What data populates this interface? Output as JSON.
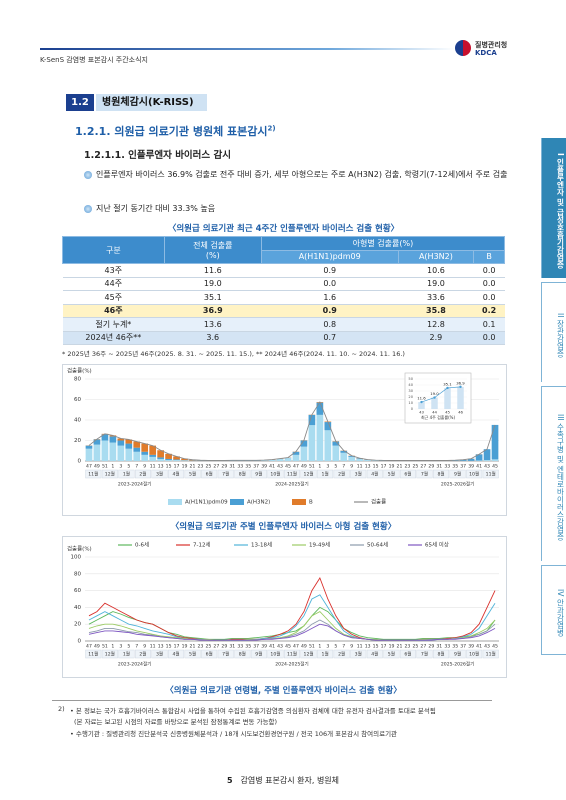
{
  "header": {
    "title": "K-SenS 감염병 표본감시 주간소식지",
    "org": "질병관리청",
    "org_en": "KDCA"
  },
  "section": {
    "number": "1.2",
    "title": "병원체감시(K-RISS)"
  },
  "subsection": {
    "title": "1.2.1. 의원급 의료기관 병원체 표본감시",
    "note": "2)"
  },
  "subsubsection": {
    "title": "1.2.1.1. 인플루엔자 바이러스 감시"
  },
  "bullets": [
    "인플루엔자 바이러스 36.9% 검출로 전주 대비 증가, 세부 아형으로는 주로 A(H3N2) 검출, 학령기(7-12세)에서 주로 검출",
    "지난 절기 동기간 대비 33.3% 높음"
  ],
  "table": {
    "caption": "〈의원급 의료기관 최근 4주간 인플루엔자 바이러스 검출 현황〉",
    "header": [
      "구분",
      "전체 검출률\n(%)",
      "아형별 검출률(%)"
    ],
    "subheader": [
      "A(H1N1)pdm09",
      "A(H3N2)",
      "B"
    ],
    "rows": [
      [
        "43주",
        "11.6",
        "0.9",
        "10.6",
        "0.0"
      ],
      [
        "44주",
        "19.0",
        "0.0",
        "19.0",
        "0.0"
      ],
      [
        "45주",
        "35.1",
        "1.6",
        "33.6",
        "0.0"
      ],
      [
        "46주",
        "36.9",
        "0.9",
        "35.8",
        "0.2"
      ],
      [
        "절기 누계*",
        "13.6",
        "0.8",
        "12.8",
        "0.1"
      ],
      [
        "2024년 46주**",
        "3.6",
        "0.7",
        "2.9",
        "0.0"
      ]
    ],
    "footnote": "* 2025년 36주 ~ 2025년 46주(2025. 8. 31. ~ 2025. 11. 15.), ** 2024년 46주(2024. 11. 10. ~ 2024. 11. 16.)"
  },
  "chart_data": [
    {
      "type": "bar",
      "stacked": true,
      "caption": "〈의원급 의료기관 주별 인플루엔자 바이러스 아형 검출 현황〉",
      "y_label": "검출률(%)",
      "categories": [
        "47",
        "49",
        "51",
        "1",
        "3",
        "5",
        "7",
        "9",
        "11",
        "13",
        "15",
        "17",
        "19",
        "21",
        "23",
        "25",
        "27",
        "29",
        "31",
        "33",
        "35",
        "37",
        "39",
        "41",
        "43",
        "45",
        "47",
        "49",
        "51",
        "1",
        "3",
        "5",
        "7",
        "9",
        "11",
        "13",
        "15",
        "17",
        "19",
        "21",
        "23",
        "25",
        "27",
        "29",
        "31",
        "33",
        "35",
        "37",
        "39",
        "41",
        "43",
        "45"
      ],
      "months": [
        "11월",
        "12월",
        "1월",
        "2월",
        "3월",
        "4월",
        "5월",
        "6월",
        "7월",
        "8월",
        "9월",
        "10월",
        "11월",
        "12월",
        "1월",
        "2월",
        "3월",
        "4월",
        "5월",
        "6월",
        "7월",
        "8월",
        "9월",
        "10월",
        "11월"
      ],
      "seasons": [
        "2023-2024절기",
        "2024-2025절기",
        "2025-2026절기"
      ],
      "ylim": [
        0,
        80
      ],
      "yticks": [
        0,
        20,
        40,
        60,
        80
      ],
      "grid": true,
      "series": [
        {
          "name": "A(H1N1)pdm09",
          "color": "#a9dcf0",
          "values": [
            12,
            16,
            20,
            18,
            15,
            12,
            9,
            6,
            4,
            2,
            1,
            1,
            0.5,
            0.3,
            0.2,
            0.2,
            0.2,
            0.2,
            0.3,
            0.3,
            0.3,
            0.3,
            0.5,
            1,
            2,
            3,
            6,
            14,
            35,
            45,
            30,
            15,
            8,
            4,
            2,
            1,
            0.5,
            0.3,
            0.2,
            0.2,
            0.2,
            0.2,
            0.2,
            0.2,
            0.2,
            0.2,
            0.2,
            0.2,
            0.2,
            0.5,
            0.9,
            1.6
          ]
        },
        {
          "name": "A(H3N2)",
          "color": "#4a9fd4",
          "values": [
            3,
            5,
            6,
            6,
            5,
            5,
            4,
            3,
            2,
            1.5,
            1,
            0.5,
            0.3,
            0.2,
            0.2,
            0.2,
            0.2,
            0.2,
            0.2,
            0.2,
            0.2,
            0.2,
            0.2,
            0.2,
            0.2,
            0.2,
            3,
            6,
            10,
            12,
            8,
            4,
            2,
            1,
            0.5,
            0.3,
            0.2,
            0.2,
            0.2,
            0.2,
            0.2,
            0.2,
            0.2,
            0.2,
            0.2,
            0.2,
            0.5,
            1,
            2,
            6,
            10.6,
            33.6
          ]
        },
        {
          "name": "B",
          "color": "#e07b2a",
          "values": [
            0.2,
            0.3,
            0.5,
            1,
            2,
            4,
            6,
            8,
            9,
            7,
            5,
            3,
            1.5,
            0.8,
            0.4,
            0.2,
            0.2,
            0.2,
            0.2,
            0.2,
            0.2,
            0.2,
            0.2,
            0.2,
            0.2,
            0.2,
            0.2,
            0.2,
            0.2,
            0.5,
            0.5,
            0.3,
            0.2,
            0.2,
            0.2,
            0.1,
            0.1,
            0.1,
            0.1,
            0.1,
            0.1,
            0.1,
            0.1,
            0.1,
            0.1,
            0.1,
            0.1,
            0.1,
            0.1,
            0.1,
            0,
            0
          ]
        },
        {
          "name": "검출률",
          "type": "line",
          "color": "#8a8a8a",
          "values": [
            15.2,
            21.3,
            26.5,
            25,
            22,
            21,
            19,
            17,
            15,
            10.5,
            7,
            4.5,
            2.3,
            1.3,
            0.8,
            0.6,
            0.6,
            0.6,
            0.7,
            0.7,
            0.7,
            0.7,
            0.9,
            1.4,
            2.4,
            3.4,
            9.2,
            20.2,
            45.2,
            57.5,
            38.5,
            19.3,
            10.2,
            5.2,
            2.7,
            1.4,
            0.8,
            0.6,
            0.5,
            0.5,
            0.5,
            0.5,
            0.5,
            0.5,
            0.5,
            0.5,
            0.8,
            1.3,
            2.3,
            6.6,
            11.6,
            35.1
          ]
        }
      ]
    },
    {
      "type": "bar",
      "title": "최근 4주 검출률(%)",
      "categories": [
        "43",
        "44",
        "45",
        "46"
      ],
      "values": [
        11.6,
        19.0,
        35.1,
        36.9
      ],
      "value_labels": [
        "11.6",
        "19.0",
        "35.1",
        "36.9"
      ],
      "color": "#4a9fd4",
      "ylim": [
        0,
        50
      ],
      "yticks": [
        0,
        10,
        20,
        30,
        40,
        50
      ]
    },
    {
      "type": "line",
      "caption": "〈의원급 의료기관 연령별, 주별 인플루엔자 바이러스 검출 현황〉",
      "y_label": "검출률(%)",
      "categories": [
        "47",
        "49",
        "51",
        "1",
        "3",
        "5",
        "7",
        "9",
        "11",
        "13",
        "15",
        "17",
        "19",
        "21",
        "23",
        "25",
        "27",
        "29",
        "31",
        "33",
        "35",
        "37",
        "39",
        "41",
        "43",
        "45",
        "47",
        "49",
        "51",
        "1",
        "3",
        "5",
        "7",
        "9",
        "11",
        "13",
        "15",
        "17",
        "19",
        "21",
        "23",
        "25",
        "27",
        "29",
        "31",
        "33",
        "35",
        "37",
        "39",
        "41",
        "43",
        "45"
      ],
      "months": [
        "11월",
        "12월",
        "1월",
        "2월",
        "3월",
        "4월",
        "5월",
        "6월",
        "7월",
        "8월",
        "9월",
        "10월",
        "11월",
        "12월",
        "1월",
        "2월",
        "3월",
        "4월",
        "5월",
        "6월",
        "7월",
        "8월",
        "9월",
        "10월",
        "11월"
      ],
      "seasons": [
        "2023-2024절기",
        "2024-2025절기",
        "2025-2026절기"
      ],
      "ylim": [
        0,
        100
      ],
      "yticks": [
        0,
        20,
        40,
        60,
        80,
        100
      ],
      "grid": true,
      "series": [
        {
          "name": "0-6세",
          "color": "#5cb85c",
          "values": [
            20,
            25,
            30,
            35,
            32,
            28,
            25,
            22,
            20,
            15,
            10,
            8,
            5,
            4,
            3,
            2,
            2,
            2,
            3,
            3,
            3,
            4,
            5,
            6,
            8,
            10,
            12,
            18,
            30,
            40,
            35,
            25,
            15,
            10,
            6,
            4,
            3,
            2,
            2,
            2,
            2,
            2,
            3,
            3,
            3,
            4,
            4,
            5,
            6,
            8,
            12,
            25
          ]
        },
        {
          "name": "7-12세",
          "color": "#d9302c",
          "values": [
            30,
            35,
            45,
            40,
            35,
            30,
            25,
            22,
            20,
            15,
            10,
            6,
            4,
            3,
            2,
            1,
            1,
            1,
            2,
            2,
            2,
            2,
            3,
            5,
            8,
            12,
            20,
            35,
            60,
            75,
            50,
            30,
            15,
            8,
            4,
            2,
            1,
            1,
            1,
            1,
            1,
            1,
            2,
            2,
            2,
            3,
            4,
            6,
            10,
            20,
            40,
            60
          ]
        },
        {
          "name": "13-18세",
          "color": "#4fb3d9",
          "values": [
            25,
            30,
            35,
            30,
            25,
            20,
            18,
            15,
            12,
            10,
            8,
            5,
            3,
            2,
            2,
            1,
            1,
            1,
            1,
            1,
            1,
            2,
            3,
            4,
            6,
            10,
            18,
            30,
            50,
            55,
            40,
            25,
            12,
            6,
            3,
            2,
            1,
            1,
            1,
            1,
            1,
            1,
            1,
            1,
            2,
            2,
            3,
            5,
            8,
            15,
            30,
            45
          ]
        },
        {
          "name": "19-49세",
          "color": "#9ccc65",
          "values": [
            15,
            18,
            20,
            20,
            18,
            15,
            12,
            10,
            8,
            6,
            5,
            4,
            3,
            2,
            2,
            2,
            1,
            1,
            1,
            1,
            2,
            2,
            2,
            3,
            4,
            6,
            10,
            18,
            30,
            35,
            25,
            15,
            8,
            5,
            3,
            2,
            2,
            1,
            1,
            1,
            1,
            1,
            2,
            2,
            2,
            2,
            3,
            4,
            6,
            10,
            15,
            25
          ]
        },
        {
          "name": "50-64세",
          "color": "#8c9bab",
          "values": [
            10,
            12,
            15,
            15,
            13,
            11,
            10,
            8,
            7,
            5,
            4,
            3,
            2,
            2,
            2,
            1,
            1,
            1,
            1,
            1,
            1,
            2,
            2,
            3,
            3,
            5,
            8,
            12,
            20,
            25,
            20,
            12,
            7,
            4,
            3,
            2,
            1,
            1,
            1,
            1,
            1,
            1,
            1,
            2,
            2,
            2,
            3,
            3,
            5,
            8,
            12,
            20
          ]
        },
        {
          "name": "65세 이상",
          "color": "#7e57c2",
          "values": [
            8,
            10,
            12,
            12,
            11,
            10,
            8,
            7,
            6,
            5,
            4,
            3,
            2,
            2,
            1,
            1,
            1,
            1,
            1,
            1,
            1,
            1,
            2,
            2,
            3,
            4,
            6,
            10,
            15,
            20,
            18,
            12,
            7,
            4,
            3,
            2,
            1,
            1,
            1,
            1,
            1,
            1,
            1,
            1,
            2,
            2,
            2,
            3,
            4,
            6,
            10,
            15
          ]
        }
      ]
    }
  ],
  "footnotes": {
    "mark": "2)",
    "lines": [
      "• 본 정보는 국가 호흡기바이러스 통합감시 사업을 통하여 수집된 호흡기감염증 의심환자 검체에 대한 유전자 검사결과를 토대로 분석됨",
      "(본 자료는 보고된 시점의 자료를 바탕으로 분석된 잠정통계로 변동 가능함)",
      "• 수행기관 : 질병관리청 진단분석국 신종병원체분석과 / 18개 시도보건환경연구원 / 전국 106개 표본감시 참여의료기관"
    ]
  },
  "footer": {
    "page": "5",
    "text": "감염병 표본감시 환자, 병원체"
  },
  "side_tabs": [
    {
      "num": "I",
      "label": "인플루엔자 및 급성호흡기감염증"
    },
    {
      "num": "II",
      "label": "장관감염증"
    },
    {
      "num": "III",
      "label": "수족구병 및 엔테로바이러스감염증"
    },
    {
      "num": "IV",
      "label": "안과감염병"
    }
  ]
}
